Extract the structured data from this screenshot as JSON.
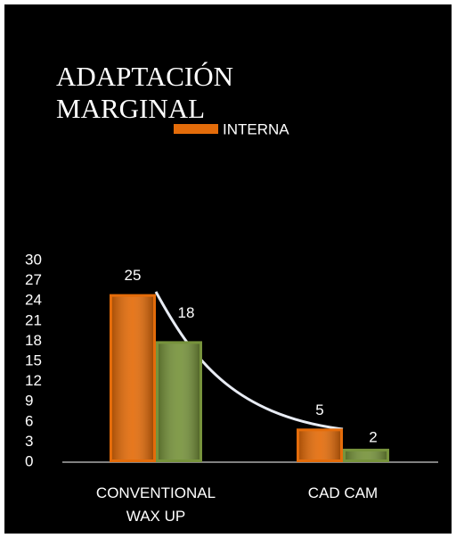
{
  "chart_data": {
    "type": "bar",
    "title": "ADAPTACIÓN MARGINAL",
    "categories": [
      "CONVENTIONAL WAX UP",
      "CAD  CAM"
    ],
    "series": [
      {
        "name": "INTERNA",
        "color": "#e46c0a",
        "values": [
          25,
          5
        ]
      },
      {
        "color": "#77933c",
        "values": [
          18,
          2
        ]
      }
    ],
    "ylim": [
      0,
      30
    ],
    "yticks": [
      0,
      3,
      6,
      9,
      12,
      15,
      18,
      21,
      24,
      27,
      30
    ],
    "grid": false,
    "legend": "top"
  }
}
